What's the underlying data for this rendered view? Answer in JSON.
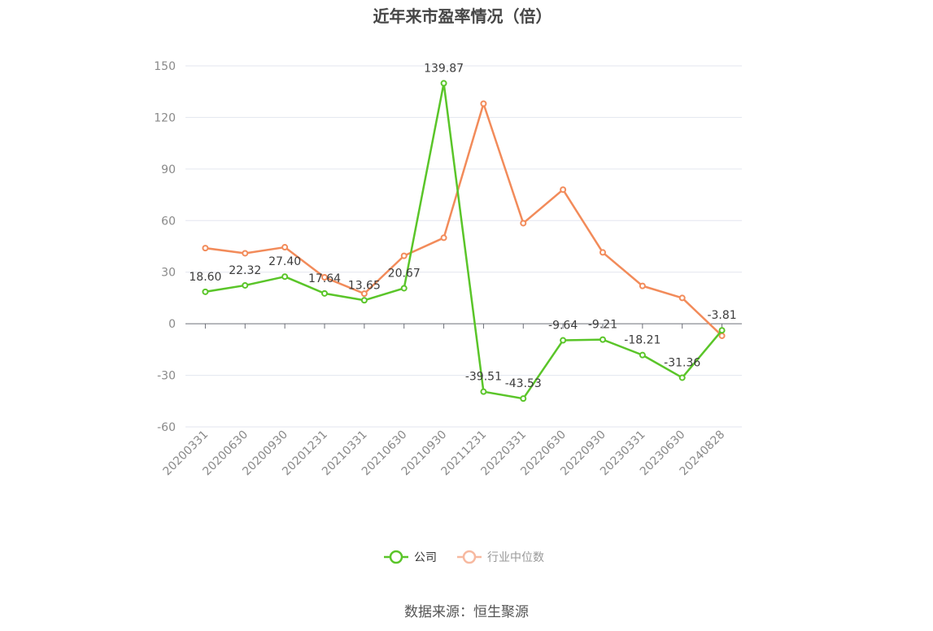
{
  "chart_data": {
    "type": "line",
    "title": "近年来市盈率情况（倍）",
    "categories": [
      "20200331",
      "20200630",
      "20200930",
      "20201231",
      "20210331",
      "20210630",
      "20210930",
      "20211231",
      "20220331",
      "20220630",
      "20220930",
      "20230331",
      "20230630",
      "20240828"
    ],
    "yticks": [
      "150",
      "120",
      "90",
      "60",
      "30",
      "0",
      "-30",
      "-60"
    ],
    "ylim": [
      -60,
      150
    ],
    "grid": true,
    "legend_position": "bottom",
    "series": [
      {
        "name": "公司",
        "color": "#5ac529",
        "values": [
          18.6,
          22.32,
          27.4,
          17.64,
          13.65,
          20.67,
          139.87,
          -39.51,
          -43.53,
          -9.64,
          -9.21,
          -18.21,
          -31.36,
          -3.81
        ],
        "labels": [
          "18.60",
          "22.32",
          "27.40",
          "17.64",
          "13.65",
          "20.67",
          "139.87",
          "-39.51",
          "-43.53",
          "-9.64",
          "-9.21",
          "-18.21",
          "-31.36",
          "-3.81"
        ]
      },
      {
        "name": "行业中位数",
        "color": "#f28b5a",
        "values": [
          44.0,
          41.0,
          44.5,
          27.0,
          17.5,
          39.5,
          50.0,
          128.0,
          58.5,
          78.0,
          41.5,
          22.0,
          15.0,
          -7.0
        ]
      }
    ]
  },
  "source_note": "数据来源：恒生聚源"
}
